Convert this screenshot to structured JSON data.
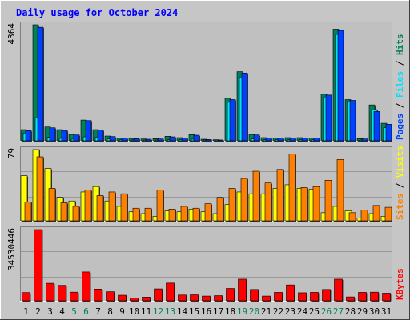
{
  "chart_data": {
    "type": "bar",
    "title": "Daily usage for October 2024",
    "categories": [
      "1",
      "2",
      "3",
      "4",
      "5",
      "6",
      "7",
      "8",
      "9",
      "10",
      "11",
      "12",
      "13",
      "14",
      "15",
      "16",
      "17",
      "18",
      "19",
      "20",
      "21",
      "22",
      "23",
      "24",
      "25",
      "26",
      "27",
      "28",
      "29",
      "30",
      "31"
    ],
    "weekend_days": [
      "5",
      "6",
      "12",
      "13",
      "19",
      "20",
      "26",
      "27"
    ],
    "panels": [
      {
        "id": "hits",
        "ymax_label": "4364",
        "ylim": [
          0,
          4364
        ],
        "legend": [
          "Pages",
          "Files",
          "Hits"
        ],
        "series": [
          {
            "name": "Hits",
            "color": "#00805c",
            "values": [
              420,
              4364,
              520,
              420,
              240,
              780,
              420,
              180,
              110,
              90,
              70,
              80,
              170,
              120,
              230,
              60,
              40,
              1600,
              2600,
              240,
              120,
              110,
              120,
              120,
              110,
              1750,
              4200,
              1550,
              80,
              1350,
              660
            ]
          },
          {
            "name": "Files",
            "color": "#00e0ff",
            "values": [
              290,
              870,
              130,
              90,
              60,
              150,
              140,
              70,
              40,
              30,
              30,
              30,
              40,
              40,
              60,
              20,
              20,
              1450,
              2400,
              70,
              40,
              40,
              40,
              40,
              40,
              1650,
              4000,
              1500,
              20,
              1170,
              490
            ]
          },
          {
            "name": "Pages",
            "color": "#0040ff",
            "values": [
              380,
              4270,
              490,
              390,
              220,
              760,
              400,
              160,
              100,
              80,
              60,
              70,
              150,
              110,
              210,
              50,
              30,
              1550,
              2550,
              220,
              110,
              100,
              110,
              110,
              100,
              1720,
              4150,
              1520,
              70,
              1100,
              620
            ]
          }
        ]
      },
      {
        "id": "visits",
        "ymax_label": "79",
        "ylim": [
          0,
          79
        ],
        "legend": [
          "Sites",
          "Visits"
        ],
        "series": [
          {
            "name": "Visits",
            "color": "#ffff00",
            "values": [
              50,
              79,
              58,
              26,
              22,
              32,
              38,
              22,
              16,
              10,
              8,
              5,
              11,
              10,
              13,
              10,
              8,
              18,
              32,
              30,
              30,
              36,
              40,
              36,
              35,
              9,
              16,
              11,
              3,
              8,
              5
            ]
          },
          {
            "name": "Sites",
            "color": "#ff8000",
            "values": [
              21,
              71,
              36,
              20,
              16,
              34,
              28,
              32,
              30,
              14,
              14,
              34,
              13,
              16,
              14,
              19,
              26,
              36,
              47,
              55,
              42,
              57,
              74,
              37,
              38,
              45,
              68,
              9,
              12,
              17,
              15
            ]
          }
        ]
      },
      {
        "id": "kbytes",
        "ymax_label": "34530446",
        "ylim": [
          0,
          34530446
        ],
        "legend": [
          "KBytes"
        ],
        "series": [
          {
            "name": "KBytes",
            "color": "#ff0000",
            "values": [
              4000000,
              34530446,
              8500000,
              7500000,
              4200000,
              14000000,
              5700000,
              4400000,
              2700000,
              1300000,
              1800000,
              5800000,
              8600000,
              2800000,
              2900000,
              2300000,
              2500000,
              6000000,
              10500000,
              5500000,
              2300000,
              4100000,
              7700000,
              3900000,
              4100000,
              5500000,
              10500000,
              1900000,
              4100000,
              4200000,
              3700000
            ]
          }
        ]
      }
    ]
  },
  "colors": {
    "frame": "#c6c6c6",
    "plot_bg": "#c0c0c0",
    "title": "#0000ff",
    "weekday_label": "#000000",
    "weekend_label": "#00805c",
    "gridline": "#999999"
  }
}
